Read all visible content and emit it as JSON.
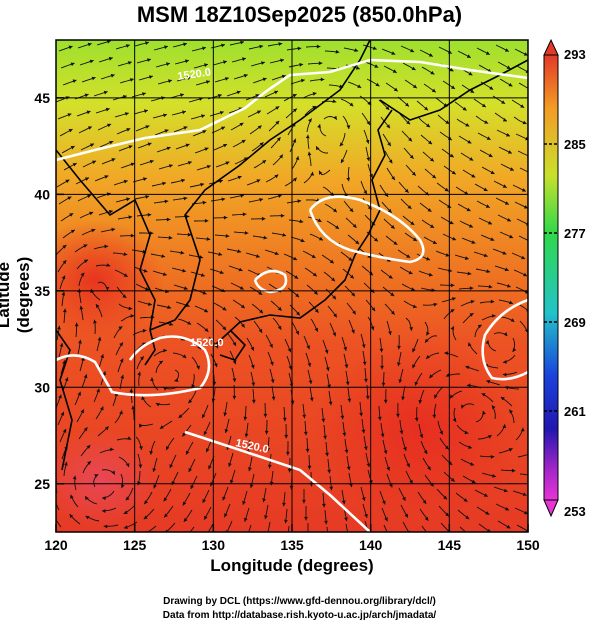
{
  "title": "MSM 18Z10Sep2025 (850.0hPa)",
  "x_axis": {
    "label": "Longitude (degrees)",
    "range": [
      120,
      150
    ],
    "ticks": [
      "120",
      "125",
      "130",
      "135",
      "140",
      "145",
      "150"
    ]
  },
  "y_axis": {
    "label": "Latitude  (degrees)",
    "range": [
      22.5,
      48
    ],
    "ticks": [
      "25",
      "30",
      "35",
      "40",
      "45"
    ]
  },
  "colorbar": {
    "min": 253,
    "max": 293,
    "labels": [
      "293",
      "285",
      "277",
      "269",
      "261",
      "253"
    ],
    "colors": [
      "#e23a28",
      "#f39c26",
      "#b5de2c",
      "#30d84a",
      "#22c3c8",
      "#1a43dc",
      "#2216b0",
      "#a126c8",
      "#e735d6"
    ]
  },
  "contours": [
    {
      "label": "1520.0"
    },
    {
      "label": "1520.0"
    },
    {
      "label": "1520.0"
    }
  ],
  "credits": [
    "Drawing by DCL (https://www.gfd-dennou.org/library/dcl/)",
    "Data from http://database.rish.kyoto-u.ac.jp/arch/jmadata/"
  ]
}
